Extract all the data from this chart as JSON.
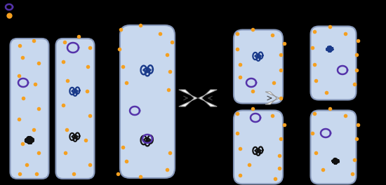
{
  "bg_color": "#000000",
  "cell_fill": "#c8d8ee",
  "cell_edge": "#8899bb",
  "orange_dot": "#f5a020",
  "plasmid_color": "#5533aa",
  "dna_blue": "#1a3a8a",
  "dna_black": "#111111",
  "figw": 5.5,
  "figh": 2.64,
  "dpi": 100
}
